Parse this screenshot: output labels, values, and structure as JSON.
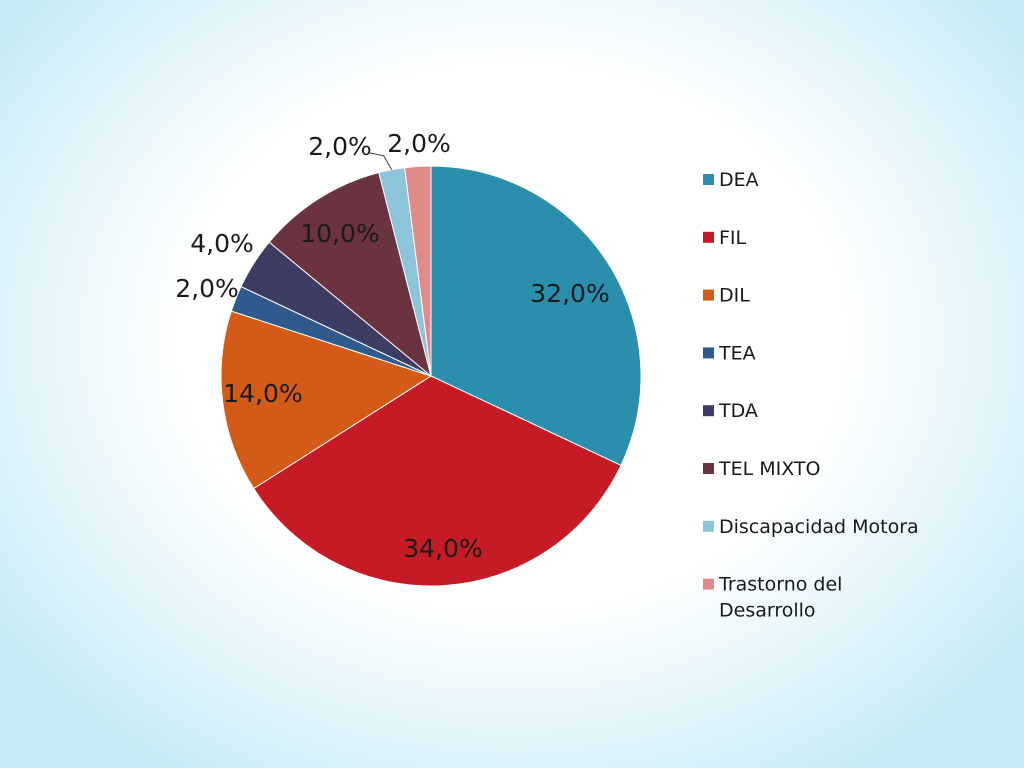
{
  "chart_data": {
    "type": "pie",
    "categories": [
      "DEA",
      "FIL",
      "DIL",
      "TEA",
      "TDA",
      "TEL MIXTO",
      "Discapacidad Motora",
      "Trastorno del Desarrollo"
    ],
    "values": [
      32.0,
      34.0,
      14.0,
      2.0,
      4.0,
      10.0,
      2.0,
      2.0
    ],
    "data_labels": [
      "32,0%",
      "34,0%",
      "14,0%",
      "2,0%",
      "4,0%",
      "10,0%",
      "2,0%",
      "2,0%"
    ],
    "colors": [
      "#2a8fad",
      "#c41b24",
      "#d35a17",
      "#2e5a8e",
      "#3d3d63",
      "#6b3340",
      "#8cc4d9",
      "#e08a8a"
    ],
    "legend_position": "right",
    "legend_wrapped": [
      [
        "DEA"
      ],
      [
        "FIL"
      ],
      [
        "DIL"
      ],
      [
        "TEA"
      ],
      [
        "TDA"
      ],
      [
        "TEL MIXTO"
      ],
      [
        "Discapacidad Motora"
      ],
      [
        "Trastorno del",
        "Desarrollo"
      ]
    ],
    "start_angle_deg": 0,
    "direction": "clockwise"
  }
}
